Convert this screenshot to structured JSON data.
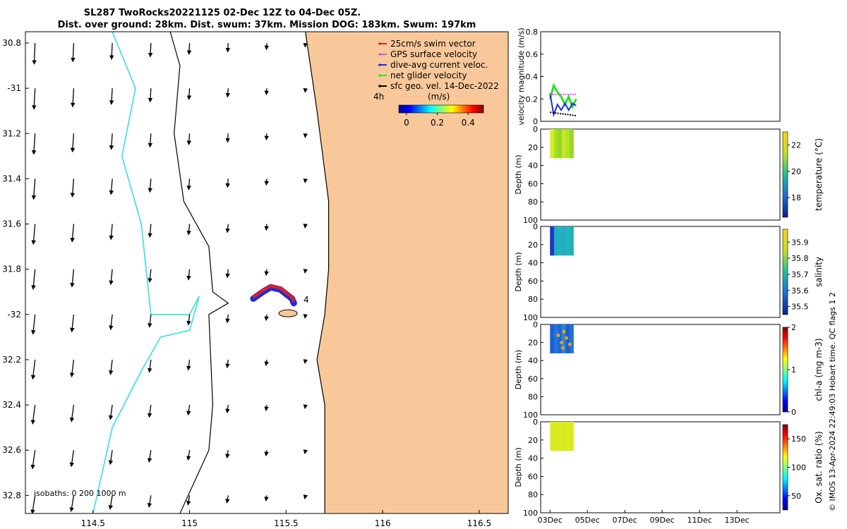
{
  "title_line1": "SL287 TwoRocks20221125 02-Dec 12Z to 04-Dec 05Z.",
  "title_line2": "Dist. over ground: 28km. Dist. swum: 37km. Mission DOG: 183km. Swum: 197km",
  "colors": {
    "land": "#f9c89a",
    "coast": "#000000",
    "isobath_200": "#000000",
    "isobath_1000": "#33e0e0",
    "swim_vector": "#e61e1e",
    "gps_velocity": "#e64dd9",
    "dive_avg": "#1f2bd6",
    "net_glider": "#29e029",
    "sfc_geo": "#000000"
  },
  "chart_data": [
    {
      "type": "map",
      "name": "glider-track-map",
      "xlim": [
        114.15,
        116.65
      ],
      "ylim": [
        -32.88,
        -30.75
      ],
      "x_ticks": [
        114.5,
        115,
        115.5,
        116,
        116.5
      ],
      "x_tick_labels": [
        "114.5",
        "115",
        "115.5",
        "116",
        "116.5"
      ],
      "y_ticks": [
        -30.8,
        -31,
        -31.2,
        -31.4,
        -31.6,
        -31.8,
        -32,
        -32.2,
        -32.4,
        -32.6,
        -32.8
      ],
      "y_tick_labels": [
        "30.8",
        "-31",
        "31.2",
        "31.4",
        "31.6",
        "31.8",
        "-32",
        "32.2",
        "32.4",
        "32.6",
        "32.8"
      ],
      "legend": {
        "position": "top-right",
        "entries": [
          {
            "label": "25cm/s swim vector",
            "color_key": "swim_vector"
          },
          {
            "label": "GPS surface velocity",
            "color_key": "gps_velocity"
          },
          {
            "label": "dive-avg current veloc.",
            "color_key": "dive_avg"
          },
          {
            "label": "net glider velocity",
            "color_key": "net_glider"
          },
          {
            "label": "sfc geo. vel. 14-Dec-2022",
            "color_key": "sfc_geo"
          }
        ]
      },
      "colorbar": {
        "label": "(m/s)",
        "range": [
          -0.05,
          0.5
        ],
        "ticks": [
          0,
          0.2,
          0.4
        ],
        "tick_labels": [
          "0",
          "0.2",
          "0.4"
        ],
        "colormap": "jet"
      },
      "time_marker": "4h",
      "track_end_label": "4",
      "isobaths_label": "isobaths: 0   200  1000 m",
      "coastline": [
        [
          115.6,
          -30.75
        ],
        [
          115.66,
          -31.1
        ],
        [
          115.72,
          -31.5
        ],
        [
          115.72,
          -31.8
        ],
        [
          115.7,
          -32.0
        ],
        [
          115.66,
          -32.2
        ],
        [
          115.7,
          -32.4
        ],
        [
          115.7,
          -32.6
        ],
        [
          115.7,
          -32.88
        ]
      ],
      "isobath_200": [
        [
          114.9,
          -30.75
        ],
        [
          114.95,
          -30.9
        ],
        [
          114.92,
          -31.2
        ],
        [
          114.97,
          -31.5
        ],
        [
          115.1,
          -31.7
        ],
        [
          115.12,
          -31.9
        ],
        [
          115.2,
          -31.95
        ],
        [
          115.1,
          -32.0
        ],
        [
          115.12,
          -32.4
        ],
        [
          115.1,
          -32.6
        ],
        [
          114.95,
          -32.88
        ]
      ],
      "isobath_1000": [
        [
          114.6,
          -30.75
        ],
        [
          114.72,
          -31.0
        ],
        [
          114.65,
          -31.3
        ],
        [
          114.75,
          -31.6
        ],
        [
          114.8,
          -32.0
        ],
        [
          115.0,
          -32.0
        ],
        [
          115.05,
          -31.92
        ],
        [
          115.0,
          -32.07
        ],
        [
          114.85,
          -32.1
        ],
        [
          114.75,
          -32.25
        ],
        [
          114.6,
          -32.5
        ],
        [
          114.5,
          -32.88
        ]
      ],
      "track": [
        [
          115.33,
          -31.93
        ],
        [
          115.38,
          -31.9
        ],
        [
          115.42,
          -31.88
        ],
        [
          115.47,
          -31.89
        ],
        [
          115.5,
          -31.91
        ],
        [
          115.53,
          -31.93
        ],
        [
          115.54,
          -31.95
        ]
      ],
      "arrow_grid": {
        "lons": [
          114.2,
          114.4,
          114.6,
          114.8,
          115.0,
          115.2,
          115.4,
          115.6
        ],
        "lats": [
          -30.8,
          -31.0,
          -31.2,
          -31.4,
          -31.6,
          -31.8,
          -32.0,
          -32.2,
          -32.4,
          -32.6,
          -32.8
        ]
      }
    },
    {
      "type": "line",
      "name": "velocity-magnitude",
      "ylabel": "velocity magnitude (m/s)",
      "ylim": [
        0,
        0.8
      ],
      "y_ticks": [
        0,
        0.2,
        0.4,
        0.6,
        0.8
      ],
      "y_tick_labels": [
        "0",
        "0.2",
        "0.4",
        "0.6",
        "0.8"
      ],
      "x_range_days": [
        2.5,
        15.3
      ],
      "series": [
        {
          "color_key": "net_glider",
          "x": [
            3.0,
            3.2,
            3.4,
            3.6,
            3.8,
            4.0,
            4.2,
            4.4
          ],
          "y": [
            0.2,
            0.32,
            0.26,
            0.22,
            0.15,
            0.22,
            0.13,
            0.2
          ]
        },
        {
          "color_key": "dive_avg",
          "x": [
            3.0,
            3.2,
            3.4,
            3.6,
            3.8,
            4.0,
            4.2,
            4.4
          ],
          "y": [
            0.25,
            0.06,
            0.15,
            0.1,
            0.16,
            0.1,
            0.16,
            0.14
          ]
        },
        {
          "color_key": "gps_velocity",
          "x": [
            3.0,
            3.5,
            4.0,
            4.4
          ],
          "y": [
            0.24,
            0.24,
            0.24,
            0.24
          ]
        },
        {
          "color_key": "sfc_geo",
          "x": [
            3.0,
            3.5,
            4.0,
            4.4
          ],
          "y": [
            0.08,
            0.07,
            0.06,
            0.05
          ]
        }
      ]
    },
    {
      "type": "heatmap",
      "name": "temperature",
      "ylabel": "Depth (m)",
      "colorbar_label": "temperature (°C)",
      "colorbar_ticks": [
        18,
        20,
        22
      ],
      "colorbar_range": [
        16.5,
        23
      ],
      "ylim": [
        0,
        100
      ],
      "y_ticks": [
        0,
        20,
        40,
        60,
        80,
        100
      ],
      "x_range_days": [
        3.0,
        4.25
      ],
      "depth_range": [
        0,
        32
      ],
      "values": [
        21.5,
        21.0,
        20.5,
        21.0,
        21.0,
        20.5
      ],
      "colors": [
        "#d8ed2a",
        "#a5e01f",
        "#8fd82a",
        "#c6e826",
        "#b5e02b",
        "#9ad629"
      ]
    },
    {
      "type": "heatmap",
      "name": "salinity",
      "ylabel": "Depth (m)",
      "colorbar_label": "salinity",
      "colorbar_ticks": [
        35.5,
        35.6,
        35.7,
        35.8,
        35.9
      ],
      "colorbar_range": [
        35.45,
        35.98
      ],
      "ylim": [
        0,
        100
      ],
      "y_ticks": [
        0,
        20,
        40,
        60,
        80,
        100
      ],
      "x_range_days": [
        3.0,
        4.25
      ],
      "depth_range": [
        0,
        32
      ],
      "values": [
        35.5,
        35.62,
        35.63,
        35.62,
        35.64,
        35.63
      ],
      "colors": [
        "#1a35c4",
        "#1fa9c6",
        "#23b4bd",
        "#27a9c8",
        "#24b8b4",
        "#22b0bf"
      ]
    },
    {
      "type": "heatmap",
      "name": "chl-a",
      "ylabel": "Depth (m)",
      "colorbar_label": "chl-a (mg m-3)",
      "colorbar_ticks": [
        0,
        1,
        2
      ],
      "colorbar_range": [
        0,
        2
      ],
      "ylim": [
        0,
        100
      ],
      "y_ticks": [
        0,
        20,
        40,
        60,
        80,
        100
      ],
      "x_range_days": [
        3.0,
        4.25
      ],
      "depth_range": [
        0,
        32
      ],
      "values": [
        0.3,
        0.35,
        0.4,
        0.35,
        0.3,
        0.3
      ],
      "colors": [
        "#1c5fd8",
        "#2377d6",
        "#1f66da",
        "#2c86d0",
        "#1a5ed3",
        "#2571d2"
      ]
    },
    {
      "type": "heatmap",
      "name": "oxygen-saturation",
      "ylabel": "Depth (m)",
      "colorbar_label": "Ox. sat. ratio (%)",
      "colorbar_ticks": [
        50,
        100,
        150
      ],
      "colorbar_range": [
        25,
        175
      ],
      "ylim": [
        0,
        100
      ],
      "y_ticks": [
        0,
        20,
        40,
        60,
        80,
        100
      ],
      "x_range_days": [
        3.0,
        4.25
      ],
      "depth_range": [
        0,
        32
      ],
      "values": [
        110,
        112,
        110,
        111,
        110,
        110
      ],
      "colors": [
        "#dcec1e",
        "#d7ea22",
        "#dcec1e",
        "#d3e826",
        "#dcec1e",
        "#d9eb20"
      ]
    }
  ],
  "x_axis_dates": {
    "ticks_days": [
      3,
      5,
      7,
      9,
      11,
      13
    ],
    "labels": [
      "03Dec",
      "05Dec",
      "07Dec",
      "09Dec",
      "11Dec",
      "13Dec"
    ]
  },
  "footer_vertical": "© IMOS 13-Apr-2024 22:49:03 Hobart time. QC flags 1  2"
}
